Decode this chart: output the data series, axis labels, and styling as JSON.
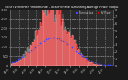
{
  "title": "Solar PV/Inverter Performance - Total PV Panel & Running Average Power Output",
  "bg_color": "#1a1a1a",
  "plot_bg_color": "#2a2a2a",
  "bar_color": "#cc0000",
  "bar_edge_color": "#ff2222",
  "dot_color": "#4444ff",
  "n_bars": 144,
  "peak_index": 60,
  "sigma": 22,
  "noise_scale": 0.25,
  "ylim_left": [
    0,
    3000
  ],
  "ylim_right": [
    0,
    8
  ],
  "dot_scale": 1500,
  "dot_sigma": 28,
  "yticks_left": [
    0,
    500,
    1000,
    1500,
    2000,
    2500,
    3000
  ],
  "yticks_right": [
    0,
    1,
    2,
    3,
    4,
    5,
    6,
    7,
    8
  ],
  "grid_color": "#ffffff",
  "title_color": "#ffffff",
  "tick_color": "#cccccc",
  "legend_bar_color": "#cc0000",
  "legend_dot_color": "#4444ff"
}
